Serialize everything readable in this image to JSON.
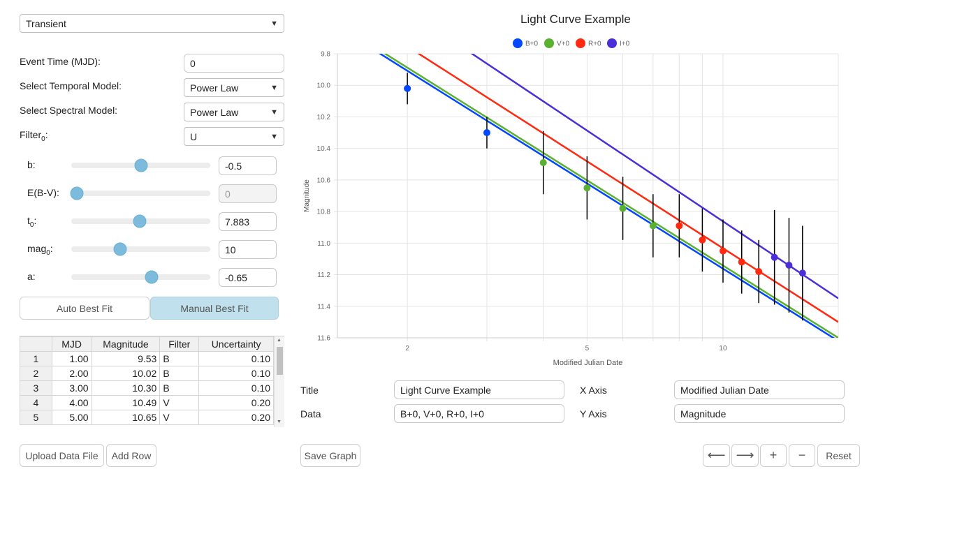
{
  "controls": {
    "event_type": "Transient",
    "event_time_label": "Event Time (MJD):",
    "event_time_value": "0",
    "temporal_label": "Select Temporal Model:",
    "temporal_value": "Power Law",
    "spectral_label": "Select Spectral Model:",
    "spectral_value": "Power Law",
    "filter_label": "Filter",
    "filter_sub": "0",
    "filter_suffix": ":",
    "filter_value": "U"
  },
  "sliders": [
    {
      "label": "b:",
      "sub": "",
      "value": "-0.5",
      "position": 0.5,
      "disabled": false
    },
    {
      "label": "E(B-V):",
      "sub": "",
      "value": "0",
      "position": 0.04,
      "disabled": true
    },
    {
      "label": "t",
      "sub": "0",
      "value": "7.883",
      "position": 0.49,
      "disabled": false
    },
    {
      "label": "mag",
      "sub": "0",
      "value": "10",
      "position": 0.35,
      "disabled": false
    },
    {
      "label": "a:",
      "sub": "",
      "value": "-0.65",
      "position": 0.58,
      "disabled": false
    }
  ],
  "fit_buttons": {
    "auto": "Auto Best Fit",
    "manual": "Manual Best Fit"
  },
  "table": {
    "headers": [
      "",
      "MJD",
      "Magnitude",
      "Filter",
      "Uncertainty"
    ],
    "rows": [
      [
        "1",
        "1.00",
        "9.53",
        "B",
        "0.10"
      ],
      [
        "2",
        "2.00",
        "10.02",
        "B",
        "0.10"
      ],
      [
        "3",
        "3.00",
        "10.30",
        "B",
        "0.10"
      ],
      [
        "4",
        "4.00",
        "10.49",
        "V",
        "0.20"
      ],
      [
        "5",
        "5.00",
        "10.65",
        "V",
        "0.20"
      ]
    ]
  },
  "bottom_buttons": {
    "upload": "Upload Data File",
    "add_row": "Add Row",
    "save_graph": "Save Graph",
    "pan_left": "⟵",
    "pan_right": "⟶",
    "zoom_in": "+",
    "zoom_out": "−",
    "reset": "Reset"
  },
  "chart_form": {
    "title_label": "Title",
    "title_value": "Light Curve Example",
    "data_label": "Data",
    "data_value": "B+0, V+0, R+0, I+0",
    "xaxis_label": "X Axis",
    "xaxis_value": "Modified Julian Date",
    "yaxis_label": "Y Axis",
    "yaxis_value": "Magnitude"
  },
  "chart_data": {
    "type": "scatter",
    "title": "Light Curve Example",
    "xlabel": "Modified Julian Date",
    "ylabel": "Magnitude",
    "x_scale": "log",
    "xlim": [
      1.4,
      18
    ],
    "ylim": [
      11.6,
      9.8
    ],
    "y_reversed": true,
    "x_ticks": [
      2,
      5,
      10
    ],
    "y_ticks": [
      9.8,
      10.0,
      10.2,
      10.4,
      10.6,
      10.8,
      11.0,
      11.2,
      11.4,
      11.6
    ],
    "y_tick_labels": [
      "9.8",
      "10.0",
      "10.2",
      "10.4",
      "10.6",
      "10.8",
      "11.0",
      "11.2",
      "11.4",
      "11.6"
    ],
    "x_tick_labels": [
      "2",
      "5",
      "10"
    ],
    "grid": true,
    "legend_position": "top",
    "series": [
      {
        "name": "B+0",
        "color": "#0047ff",
        "points": [
          [
            2.0,
            10.02,
            0.1
          ],
          [
            3.0,
            10.3,
            0.1
          ]
        ],
        "line": [
          [
            1.4,
            9.63
          ],
          [
            18.0,
            11.62
          ]
        ]
      },
      {
        "name": "V+0",
        "color": "#5ab030",
        "points": [
          [
            4.0,
            10.49,
            0.2
          ],
          [
            5.0,
            10.65,
            0.2
          ],
          [
            6.0,
            10.78,
            0.2
          ],
          [
            7.0,
            10.89,
            0.2
          ]
        ],
        "line": [
          [
            1.4,
            9.61
          ],
          [
            18.0,
            11.6
          ]
        ]
      },
      {
        "name": "R+0",
        "color": "#ff2a10",
        "points": [
          [
            8.0,
            10.89,
            0.2
          ],
          [
            9.0,
            10.98,
            0.2
          ],
          [
            10.0,
            11.05,
            0.2
          ],
          [
            11.0,
            11.12,
            0.2
          ],
          [
            12.0,
            11.18,
            0.2
          ]
        ],
        "line": [
          [
            1.4,
            9.47
          ],
          [
            18.0,
            11.5
          ]
        ]
      },
      {
        "name": "I+0",
        "color": "#4a2fd8",
        "points": [
          [
            13.0,
            11.09,
            0.3
          ],
          [
            14.0,
            11.14,
            0.3
          ],
          [
            15.0,
            11.19,
            0.3
          ]
        ],
        "line": [
          [
            1.4,
            9.23
          ],
          [
            18.0,
            11.35
          ]
        ]
      }
    ]
  }
}
